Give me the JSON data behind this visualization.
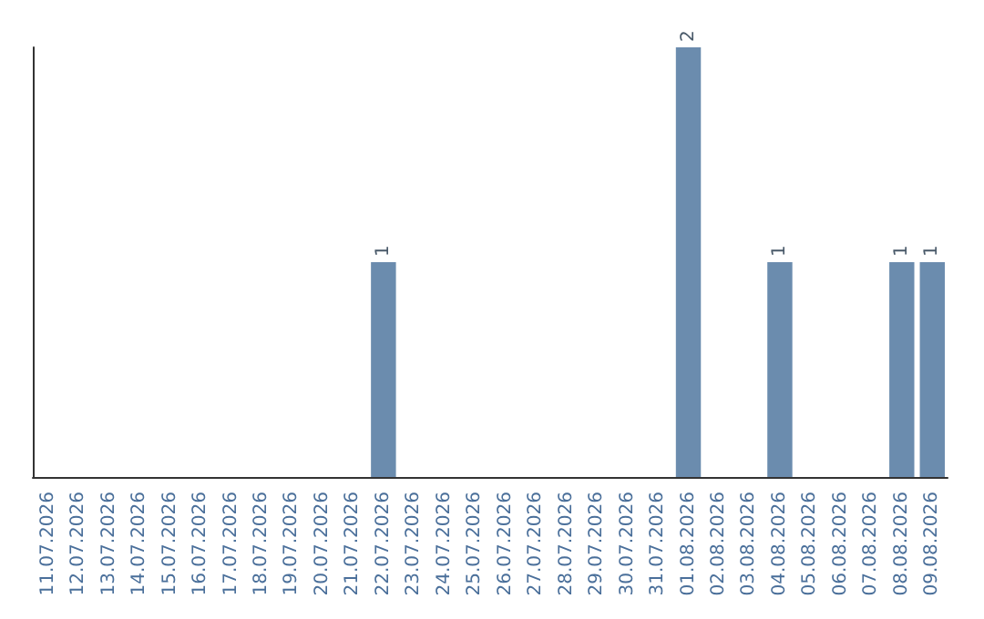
{
  "chart_data": {
    "type": "bar",
    "categories": [
      "11.07.2026",
      "12.07.2026",
      "13.07.2026",
      "14.07.2026",
      "15.07.2026",
      "16.07.2026",
      "17.07.2026",
      "18.07.2026",
      "19.07.2026",
      "20.07.2026",
      "21.07.2026",
      "22.07.2026",
      "23.07.2026",
      "24.07.2026",
      "25.07.2026",
      "26.07.2026",
      "27.07.2026",
      "28.07.2026",
      "29.07.2026",
      "30.07.2026",
      "31.07.2026",
      "01.08.2026",
      "02.08.2026",
      "03.08.2026",
      "04.08.2026",
      "05.08.2026",
      "06.08.2026",
      "07.08.2026",
      "08.08.2026",
      "09.08.2026"
    ],
    "values": [
      0,
      0,
      0,
      0,
      0,
      0,
      0,
      0,
      0,
      0,
      0,
      1,
      0,
      0,
      0,
      0,
      0,
      0,
      0,
      0,
      0,
      2,
      0,
      0,
      1,
      0,
      0,
      0,
      1,
      1
    ],
    "value_labels": [
      null,
      null,
      null,
      null,
      null,
      null,
      null,
      null,
      null,
      null,
      null,
      "1",
      null,
      null,
      null,
      null,
      null,
      null,
      null,
      null,
      null,
      "2",
      null,
      null,
      "1",
      null,
      null,
      null,
      "1",
      "1"
    ],
    "color": "#6b8cae",
    "grid": false
  }
}
